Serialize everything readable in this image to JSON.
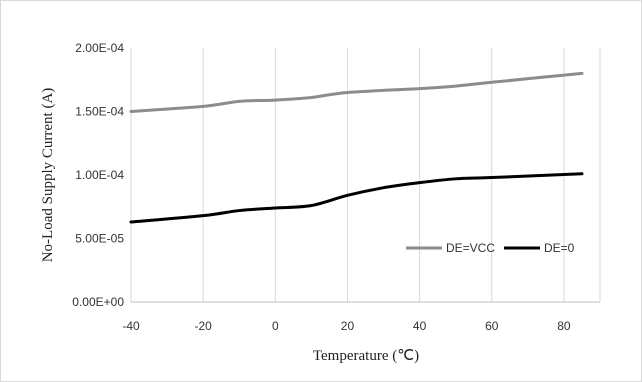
{
  "chart_data": {
    "type": "line",
    "title": "",
    "xlabel": "Temperature (℃)",
    "ylabel": "No-Load Supply Current (A)",
    "xlim": [
      -40,
      90
    ],
    "ylim": [
      0,
      0.0002
    ],
    "x_ticks": [
      "-40",
      "-20",
      "0",
      "20",
      "40",
      "60",
      "80"
    ],
    "x_tick_values": [
      -40,
      -20,
      0,
      20,
      40,
      60,
      80
    ],
    "y_ticks": [
      "0.00E+00",
      "5.00E-05",
      "1.00E-04",
      "1.50E-04",
      "2.00E-04"
    ],
    "y_tick_values": [
      0,
      5e-05,
      0.0001,
      0.00015,
      0.0002
    ],
    "grid": "vertical",
    "legend_position": "lower-right",
    "series": [
      {
        "name": "DE=VCC",
        "color": "#8c8c8c",
        "x": [
          -40,
          -20,
          -10,
          0,
          10,
          20,
          40,
          50,
          60,
          85
        ],
        "y": [
          0.00015,
          0.000154,
          0.000158,
          0.000159,
          0.000161,
          0.000165,
          0.000168,
          0.00017,
          0.000173,
          0.00018
        ]
      },
      {
        "name": "DE=0",
        "color": "#000000",
        "x": [
          -40,
          -20,
          -10,
          0,
          10,
          20,
          30,
          40,
          50,
          60,
          85
        ],
        "y": [
          6.3e-05,
          6.8e-05,
          7.2e-05,
          7.4e-05,
          7.6e-05,
          8.4e-05,
          9e-05,
          9.4e-05,
          9.7e-05,
          9.8e-05,
          0.000101
        ]
      }
    ]
  }
}
